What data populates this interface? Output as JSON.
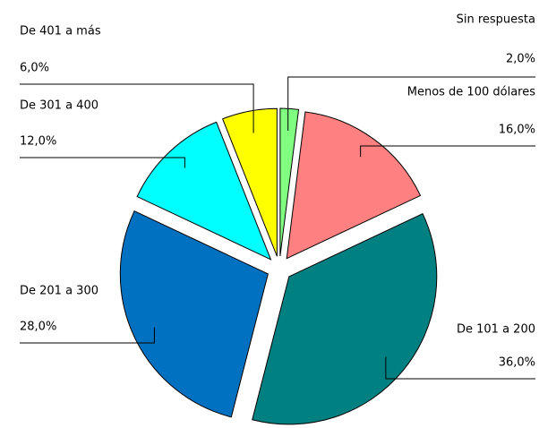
{
  "chart_data": {
    "type": "pie",
    "categories": [
      "Sin respuesta",
      "Menos de 100 dólares",
      "De 101 a 200",
      "De 201 a 300",
      "De 301 a 400",
      "De 401 a más"
    ],
    "values": [
      2,
      16,
      36,
      28,
      12,
      6
    ],
    "value_labels": [
      "2,0%",
      "16,0%",
      "36,0%",
      "28,0%",
      "12,0%",
      "6,0%"
    ],
    "colors": [
      "#80ff80",
      "#ff8080",
      "#008080",
      "#0070c0",
      "#00ffff",
      "#ffff00"
    ]
  }
}
